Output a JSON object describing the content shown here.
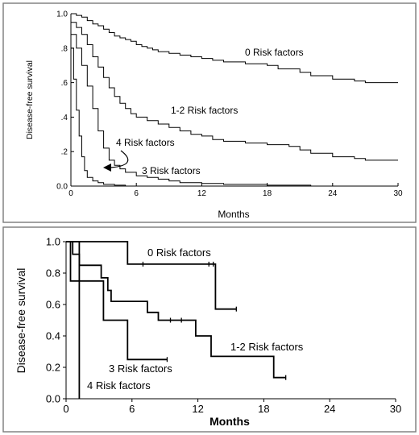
{
  "chart_data": [
    {
      "type": "line",
      "step": true,
      "xlabel": "Months",
      "ylabel": "Disease-free survival",
      "xlim": [
        0,
        30
      ],
      "ylim": [
        0,
        1
      ],
      "x_ticks": [
        0,
        6,
        12,
        18,
        24,
        30
      ],
      "y_ticks": [
        0,
        0.2,
        0.4,
        0.6,
        0.8,
        1.0
      ],
      "x_tick_labels": [
        "0",
        "6",
        "12",
        "18",
        "24",
        "30"
      ],
      "y_tick_labels": [
        "0.0",
        ".2",
        ".4",
        ".6",
        ".8",
        "1.0"
      ],
      "grid": false,
      "annotations": [
        "0 Risk factors",
        "1-2 Risk factors",
        "4 Risk factors",
        "3 Risk factors"
      ],
      "series": [
        {
          "name": "0 Risk factors",
          "points": [
            [
              0,
              1.0
            ],
            [
              0.5,
              0.99
            ],
            [
              1,
              0.98
            ],
            [
              1.5,
              0.96
            ],
            [
              2,
              0.94
            ],
            [
              2.5,
              0.93
            ],
            [
              3,
              0.91
            ],
            [
              3.5,
              0.89
            ],
            [
              4,
              0.87
            ],
            [
              4.5,
              0.86
            ],
            [
              5,
              0.85
            ],
            [
              5.5,
              0.84
            ],
            [
              6,
              0.82
            ],
            [
              6.5,
              0.81
            ],
            [
              7,
              0.8
            ],
            [
              7.5,
              0.79
            ],
            [
              8,
              0.78
            ],
            [
              9,
              0.77
            ],
            [
              10,
              0.76
            ],
            [
              11,
              0.75
            ],
            [
              12,
              0.74
            ],
            [
              13,
              0.73
            ],
            [
              14,
              0.72
            ],
            [
              16,
              0.71
            ],
            [
              18,
              0.7
            ],
            [
              19,
              0.68
            ],
            [
              21,
              0.66
            ],
            [
              22,
              0.64
            ],
            [
              24,
              0.62
            ],
            [
              26,
              0.61
            ],
            [
              27,
              0.6
            ],
            [
              30,
              0.6
            ]
          ]
        },
        {
          "name": "1-2 Risk factors",
          "points": [
            [
              0,
              0.95
            ],
            [
              0.5,
              0.92
            ],
            [
              1,
              0.88
            ],
            [
              1.5,
              0.82
            ],
            [
              2,
              0.75
            ],
            [
              2.5,
              0.69
            ],
            [
              3,
              0.63
            ],
            [
              3.5,
              0.57
            ],
            [
              4,
              0.52
            ],
            [
              4.5,
              0.48
            ],
            [
              5,
              0.45
            ],
            [
              5.5,
              0.42
            ],
            [
              6,
              0.4
            ],
            [
              7,
              0.38
            ],
            [
              8,
              0.36
            ],
            [
              9,
              0.34
            ],
            [
              10,
              0.32
            ],
            [
              11,
              0.3
            ],
            [
              12,
              0.29
            ],
            [
              13,
              0.27
            ],
            [
              14,
              0.26
            ],
            [
              16,
              0.25
            ],
            [
              18,
              0.24
            ],
            [
              20,
              0.23
            ],
            [
              21,
              0.21
            ],
            [
              22,
              0.19
            ],
            [
              24,
              0.17
            ],
            [
              26,
              0.16
            ],
            [
              27,
              0.15
            ],
            [
              30,
              0.15
            ]
          ]
        },
        {
          "name": "3 Risk factors",
          "points": [
            [
              0,
              0.88
            ],
            [
              0.5,
              0.8
            ],
            [
              1,
              0.7
            ],
            [
              1.5,
              0.58
            ],
            [
              2,
              0.45
            ],
            [
              2.5,
              0.32
            ],
            [
              3,
              0.22
            ],
            [
              3.5,
              0.15
            ],
            [
              4,
              0.12
            ],
            [
              4.5,
              0.1
            ],
            [
              5,
              0.08
            ],
            [
              6,
              0.06
            ],
            [
              7,
              0.05
            ],
            [
              8,
              0.04
            ],
            [
              9,
              0.03
            ],
            [
              10,
              0.02
            ],
            [
              12,
              0.015
            ],
            [
              14,
              0.01
            ],
            [
              18,
              0.005
            ],
            [
              22,
              0.0
            ]
          ]
        },
        {
          "name": "4 Risk factors",
          "points": [
            [
              0,
              0.8
            ],
            [
              0.25,
              0.62
            ],
            [
              0.5,
              0.44
            ],
            [
              0.75,
              0.29
            ],
            [
              1,
              0.17
            ],
            [
              1.25,
              0.09
            ],
            [
              1.5,
              0.05
            ],
            [
              2,
              0.03
            ],
            [
              2.5,
              0.02
            ],
            [
              3,
              0.01
            ],
            [
              4,
              0.005
            ],
            [
              5,
              0.0
            ]
          ]
        }
      ]
    },
    {
      "type": "line",
      "step": true,
      "xlabel": "Months",
      "ylabel": "Disease-free survival",
      "xlim": [
        0,
        30
      ],
      "ylim": [
        0,
        1
      ],
      "x_ticks": [
        0,
        6,
        12,
        18,
        24,
        30
      ],
      "y_ticks": [
        0,
        0.2,
        0.4,
        0.6,
        0.8,
        1.0
      ],
      "x_tick_labels": [
        "0",
        "6",
        "12",
        "18",
        "24",
        "30"
      ],
      "y_tick_labels": [
        "0.0",
        "0.2",
        "0.4",
        "0.6",
        "0.8",
        "1.0"
      ],
      "grid": false,
      "annotations": [
        "0 Risk factors",
        "1-2 Risk factors",
        "3 Risk factors",
        "4 Risk factors"
      ],
      "series": [
        {
          "name": "0 Risk factors",
          "points": [
            [
              0,
              1.0
            ],
            [
              5.6,
              1.0
            ],
            [
              5.6,
              0.857
            ],
            [
              13.6,
              0.857
            ],
            [
              13.6,
              0.571
            ],
            [
              15.5,
              0.571
            ]
          ],
          "censored": [
            [
              7,
              0.857
            ],
            [
              13,
              0.857
            ],
            [
              13.4,
              0.857
            ],
            [
              15.5,
              0.571
            ]
          ]
        },
        {
          "name": "1-2 Risk factors",
          "points": [
            [
              0,
              1.0
            ],
            [
              0.6,
              1.0
            ],
            [
              0.6,
              0.92
            ],
            [
              1.2,
              0.92
            ],
            [
              1.2,
              0.85
            ],
            [
              3.2,
              0.85
            ],
            [
              3.2,
              0.77
            ],
            [
              3.8,
              0.77
            ],
            [
              3.8,
              0.69
            ],
            [
              4.1,
              0.69
            ],
            [
              4.1,
              0.62
            ],
            [
              7.4,
              0.62
            ],
            [
              7.4,
              0.55
            ],
            [
              8.4,
              0.55
            ],
            [
              8.4,
              0.5
            ],
            [
              11.8,
              0.5
            ],
            [
              11.8,
              0.4
            ],
            [
              13.2,
              0.4
            ],
            [
              13.2,
              0.27
            ],
            [
              18.9,
              0.27
            ],
            [
              18.9,
              0.135
            ],
            [
              20,
              0.135
            ]
          ],
          "censored": [
            [
              9.5,
              0.5
            ],
            [
              10.5,
              0.5
            ],
            [
              20,
              0.135
            ]
          ]
        },
        {
          "name": "3 Risk factors",
          "points": [
            [
              0,
              1.0
            ],
            [
              0.4,
              1.0
            ],
            [
              0.4,
              0.75
            ],
            [
              3.4,
              0.75
            ],
            [
              3.4,
              0.5
            ],
            [
              5.6,
              0.5
            ],
            [
              5.6,
              0.25
            ],
            [
              9.2,
              0.25
            ]
          ],
          "censored": [
            [
              9.2,
              0.25
            ]
          ]
        },
        {
          "name": "4 Risk factors",
          "points": [
            [
              0,
              1.0
            ],
            [
              1.2,
              1.0
            ],
            [
              1.2,
              0.0
            ]
          ]
        }
      ]
    }
  ]
}
